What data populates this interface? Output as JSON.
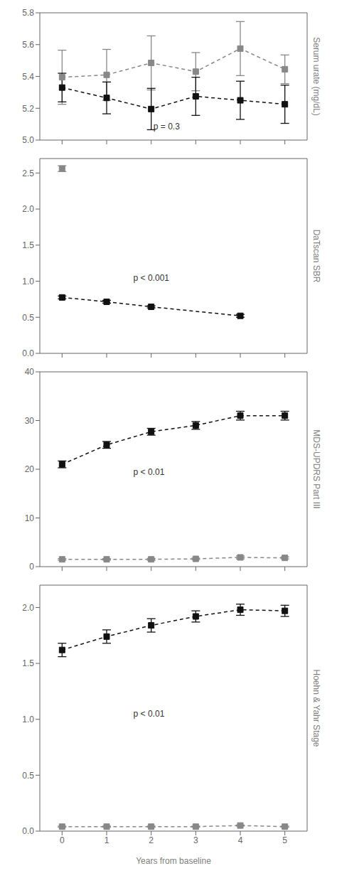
{
  "chart_data": [
    {
      "type": "line",
      "ylabel": "Serum urate (mg/dL)",
      "xlim": [
        -0.5,
        5.5
      ],
      "xticks": [
        0,
        1,
        2,
        3,
        4,
        5
      ],
      "ylim": [
        5.0,
        5.8
      ],
      "yticks": [
        {
          "value": 5,
          "label": "5.0"
        },
        5.2,
        5.4,
        5.6,
        5.8
      ],
      "tick_labels": "y",
      "grid": false,
      "annotations": [
        {
          "text": "p = 0.3",
          "x": 2.05,
          "y": 5.085
        }
      ],
      "series": [
        {
          "color": "#888888",
          "marker": "square",
          "line_style": "dashed",
          "x": [
            0,
            1,
            2,
            3,
            4,
            5
          ],
          "values": [
            5.395,
            5.41,
            5.485,
            5.43,
            5.575,
            5.445
          ],
          "yerr": [
            0.17,
            0.16,
            0.17,
            0.12,
            0.17,
            0.09
          ]
        },
        {
          "color": "#111111",
          "marker": "square",
          "line_style": "dashed",
          "x": [
            0,
            1,
            2,
            3,
            4,
            5
          ],
          "values": [
            5.33,
            5.265,
            5.195,
            5.275,
            5.25,
            5.225
          ],
          "yerr": [
            0.09,
            0.1,
            0.13,
            0.12,
            0.12,
            0.12
          ]
        }
      ]
    },
    {
      "type": "line",
      "ylabel": "DaTscan SBR",
      "xlim": [
        -0.5,
        5.5
      ],
      "xticks": [
        0,
        1,
        2,
        3,
        4,
        5
      ],
      "ylim": [
        0,
        2.7
      ],
      "yticks": [
        {
          "value": 0,
          "label": "0.0"
        },
        0.5,
        {
          "value": 1,
          "label": "1.0"
        },
        1.5,
        {
          "value": 2,
          "label": "2.0"
        },
        2.5
      ],
      "tick_labels": "y",
      "grid": false,
      "annotations": [
        {
          "text": "p < 0.001",
          "x": 1.6,
          "y": 1.05
        }
      ],
      "series": [
        {
          "color": "#888888",
          "marker": "square",
          "line_style": "dashed",
          "x": [
            0
          ],
          "values": [
            2.56
          ],
          "yerr": [
            0.04
          ]
        },
        {
          "color": "#111111",
          "marker": "square",
          "line_style": "dashed",
          "x": [
            0,
            1,
            2,
            4
          ],
          "values": [
            0.775,
            0.715,
            0.645,
            0.52
          ],
          "yerr": [
            0.02,
            0.02,
            0.015,
            0.02
          ]
        }
      ]
    },
    {
      "type": "line",
      "ylabel": "MDS-UPDRS Part III",
      "xlim": [
        -0.5,
        5.5
      ],
      "xticks": [
        0,
        1,
        2,
        3,
        4,
        5
      ],
      "ylim": [
        0,
        40
      ],
      "yticks": [
        0,
        10,
        20,
        30,
        40
      ],
      "tick_labels": "y",
      "grid": false,
      "annotations": [
        {
          "text": "p < 0.01",
          "x": 1.6,
          "y": 19.5
        }
      ],
      "series": [
        {
          "color": "#888888",
          "marker": "square",
          "line_style": "dashed",
          "x": [
            0,
            1,
            2,
            3,
            4,
            5
          ],
          "values": [
            1.5,
            1.5,
            1.5,
            1.6,
            1.9,
            1.8
          ],
          "yerr": [
            0.15,
            0.15,
            0.2,
            0.15,
            0.3,
            0.2
          ]
        },
        {
          "color": "#111111",
          "marker": "square",
          "line_style": "dashed",
          "x": [
            0,
            1,
            2,
            3,
            4,
            5
          ],
          "values": [
            21.0,
            25.0,
            27.7,
            29.0,
            31.0,
            31.0
          ],
          "yerr": [
            0.7,
            0.7,
            0.7,
            0.8,
            0.9,
            0.9
          ]
        }
      ]
    },
    {
      "type": "line",
      "ylabel": "Hoehn & Yahr Stage",
      "xlabel": "Years from baseline",
      "xlim": [
        -0.5,
        5.5
      ],
      "xticks": [
        0,
        1,
        2,
        3,
        4,
        5
      ],
      "ylim": [
        0,
        2.2
      ],
      "yticks": [
        {
          "value": 0,
          "label": "0.0"
        },
        0.5,
        {
          "value": 1,
          "label": "1.0"
        },
        1.5,
        {
          "value": 2,
          "label": "2.0"
        }
      ],
      "grid": false,
      "annotations": [
        {
          "text": "p < 0.01",
          "x": 1.6,
          "y": 1.05
        }
      ],
      "series": [
        {
          "color": "#888888",
          "marker": "square",
          "line_style": "dashed",
          "x": [
            0,
            1,
            2,
            3,
            4,
            5
          ],
          "values": [
            0.04,
            0.04,
            0.04,
            0.04,
            0.05,
            0.04
          ],
          "yerr": [
            0.005,
            0.005,
            0.005,
            0.005,
            0.005,
            0.005
          ]
        },
        {
          "color": "#111111",
          "marker": "square",
          "line_style": "dashed",
          "x": [
            0,
            1,
            2,
            3,
            4,
            5
          ],
          "values": [
            1.62,
            1.74,
            1.84,
            1.92,
            1.98,
            1.97
          ],
          "yerr": [
            0.06,
            0.06,
            0.06,
            0.05,
            0.05,
            0.05
          ]
        }
      ]
    }
  ]
}
